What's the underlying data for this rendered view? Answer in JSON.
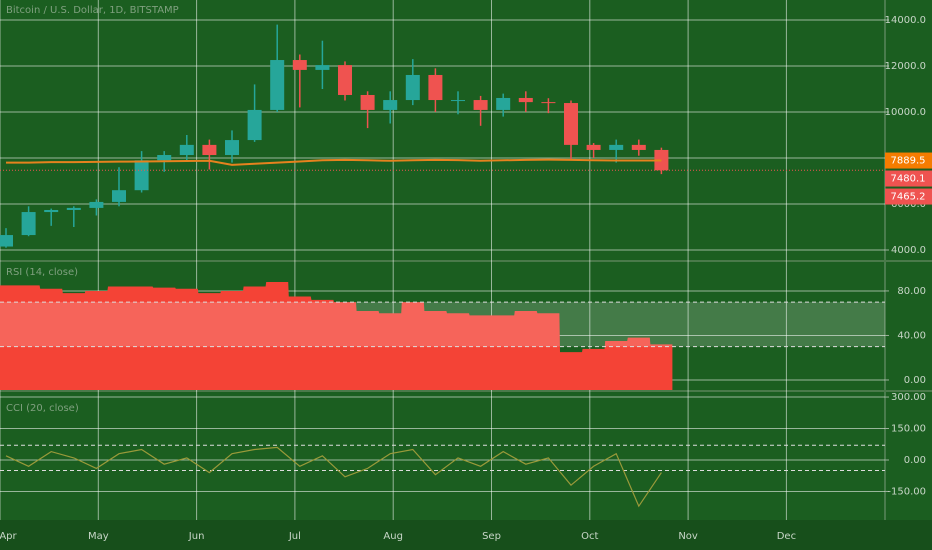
{
  "chart_data": [
    {
      "type": "candlestick",
      "title": "Bitcoin / U.S. Dollar, 1D, BITSTAMP",
      "up_color": "#26a69a",
      "down_color": "#ef5350",
      "open": [
        4150,
        4650,
        5650,
        5740,
        5830,
        6090,
        6600,
        7900,
        8130,
        8570,
        8130,
        8780,
        10090,
        12260,
        11830,
        12040,
        10740,
        10090,
        10520,
        11610,
        10520,
        10520,
        10090,
        10610,
        10430,
        10390,
        8570,
        8350,
        8570,
        8350
      ],
      "high": [
        4950,
        5900,
        5800,
        5900,
        6200,
        7600,
        8300,
        8300,
        9000,
        8800,
        9200,
        11200,
        13800,
        12500,
        13100,
        12200,
        10900,
        10900,
        12300,
        11900,
        10900,
        10700,
        10800,
        10900,
        10600,
        10500,
        8650,
        8800,
        8800,
        8450
      ],
      "low": [
        4100,
        4600,
        5050,
        5000,
        5500,
        5900,
        6500,
        7400,
        7850,
        7500,
        7800,
        8700,
        10000,
        10200,
        11000,
        10500,
        9300,
        9500,
        10300,
        10000,
        9900,
        9400,
        9800,
        10000,
        9950,
        7900,
        8000,
        7800,
        8100,
        7300
      ],
      "close": [
        4650,
        5650,
        5740,
        5830,
        6090,
        6600,
        7900,
        8130,
        8570,
        8130,
        8780,
        10090,
        12260,
        11830,
        12040,
        10740,
        10090,
        10520,
        11610,
        10520,
        10520,
        10090,
        10610,
        10430,
        10390,
        8570,
        8350,
        8570,
        8350,
        7465
      ],
      "series": [
        {
          "color": "#e6821e",
          "values": [
            7800,
            7800,
            7820,
            7820,
            7830,
            7840,
            7850,
            7860,
            7870,
            7880,
            7700,
            7750,
            7800,
            7850,
            7900,
            7920,
            7900,
            7880,
            7900,
            7920,
            7910,
            7880,
            7900,
            7920,
            7930,
            7920,
            7900,
            7890,
            7890,
            7889.5
          ]
        }
      ],
      "price_tags": [
        {
          "value": 7889.5,
          "color": "#f57c00"
        },
        {
          "value": 7480.1,
          "color": "#ef5350"
        },
        {
          "value": 7465.2,
          "color": "#ef5350"
        }
      ],
      "ylim": [
        3565,
        14870
      ],
      "yticks": [
        {
          "value": 4000,
          "label": "4000.0"
        },
        {
          "value": 6000,
          "label": "6000.0"
        },
        {
          "value": 8000,
          "label": "8000.0"
        },
        {
          "value": 10000,
          "label": "10000.0"
        },
        {
          "value": 12000,
          "label": "12000.0"
        },
        {
          "value": 14000,
          "label": "14000.0"
        }
      ]
    },
    {
      "type": "area",
      "title": "RSI (14, close)",
      "color": "#f44336",
      "values": [
        85,
        85,
        82,
        78,
        80,
        84,
        84,
        83,
        82,
        78,
        80,
        84,
        88,
        75,
        72,
        70,
        62,
        60,
        70,
        62,
        60,
        58,
        58,
        62,
        60,
        25,
        28,
        35,
        38,
        32
      ],
      "bands": [
        70,
        30
      ],
      "ylim": [
        -9,
        106
      ],
      "yticks": [
        {
          "value": 0,
          "label": "0.00"
        },
        {
          "value": 40,
          "label": "40.00"
        },
        {
          "value": 80,
          "label": "80.00"
        }
      ]
    },
    {
      "type": "line",
      "title": "CCI (20, close)",
      "color": "#9a9a3a",
      "values": [
        20,
        -30,
        40,
        10,
        -40,
        30,
        50,
        -20,
        10,
        -60,
        30,
        50,
        60,
        -30,
        20,
        -80,
        -40,
        30,
        50,
        -70,
        10,
        -30,
        40,
        -20,
        10,
        -120,
        -30,
        30,
        -220,
        -60
      ],
      "bands": [
        70,
        -50
      ],
      "ylim": [
        -286,
        324
      ],
      "yticks": [
        {
          "value": -150,
          "label": "-150.00"
        },
        {
          "value": 0,
          "label": "0.00"
        },
        {
          "value": 150,
          "label": "150.00"
        },
        {
          "value": 300,
          "label": "300.00"
        }
      ],
      "xtick_labels": [
        "Apr",
        "May",
        "Jun",
        "Jul",
        "Aug",
        "Sep",
        "Oct",
        "Nov",
        "Dec"
      ]
    }
  ]
}
